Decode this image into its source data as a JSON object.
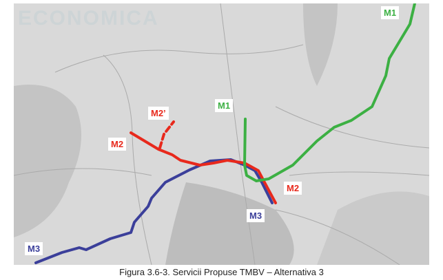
{
  "map": {
    "watermark": "ECONOMICA",
    "lines": [
      {
        "id": "M1",
        "color": "#3cb043",
        "style": "solid"
      },
      {
        "id": "M2",
        "color": "#e8291c",
        "style": "solid"
      },
      {
        "id": "M2'",
        "color": "#e8291c",
        "style": "dashed"
      },
      {
        "id": "M3",
        "color": "#3b3f9a",
        "style": "solid"
      }
    ],
    "labels": {
      "m1_north": "M1",
      "m1_center": "M1",
      "m2_prime": "M2’",
      "m2_west": "M2",
      "m2_east": "M2",
      "m3_east": "M3",
      "m3_west": "M3"
    }
  },
  "caption": "Figura 3.6-3. Servicii Propuse TMBV – Alternativa 3"
}
